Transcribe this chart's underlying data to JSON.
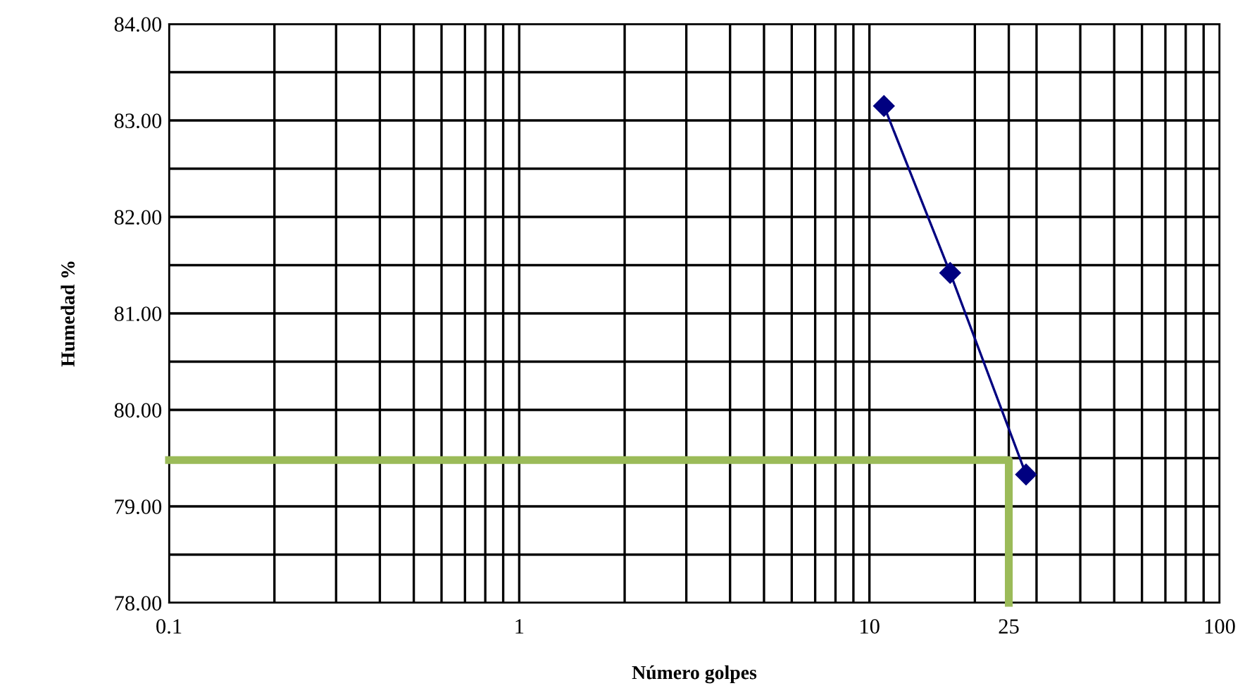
{
  "chart_data": {
    "type": "line",
    "xlabel": "Número golpes",
    "ylabel": "Humedad %",
    "log": "x",
    "grid": true,
    "marker": "diamond",
    "xlim": [
      0.1,
      100
    ],
    "ylim": [
      78,
      84
    ],
    "xticks": [
      0.1,
      {
        "value": 0.2,
        "label": null
      },
      {
        "value": 0.3,
        "label": null
      },
      {
        "value": 0.4,
        "label": null
      },
      {
        "value": 0.5,
        "label": null
      },
      {
        "value": 0.6,
        "label": null
      },
      {
        "value": 0.7,
        "label": null
      },
      {
        "value": 0.8,
        "label": null
      },
      {
        "value": 0.9,
        "label": null
      },
      1,
      {
        "value": 2,
        "label": null
      },
      {
        "value": 3,
        "label": null
      },
      {
        "value": 4,
        "label": null
      },
      {
        "value": 5,
        "label": null
      },
      {
        "value": 6,
        "label": null
      },
      {
        "value": 7,
        "label": null
      },
      {
        "value": 8,
        "label": null
      },
      {
        "value": 9,
        "label": null
      },
      10,
      {
        "value": 20,
        "label": null
      },
      {
        "value": 25,
        "label": "25"
      },
      {
        "value": 30,
        "label": null
      },
      {
        "value": 40,
        "label": null
      },
      {
        "value": 50,
        "label": null
      },
      {
        "value": 60,
        "label": null
      },
      {
        "value": 70,
        "label": null
      },
      {
        "value": 80,
        "label": null
      },
      {
        "value": 90,
        "label": null
      },
      100
    ],
    "yticks": [
      {
        "value": 78,
        "label": "78.00"
      },
      {
        "value": 78.5,
        "label": null
      },
      {
        "value": 79,
        "label": "79.00"
      },
      {
        "value": 79.5,
        "label": null
      },
      {
        "value": 80,
        "label": "80.00"
      },
      {
        "value": 80.5,
        "label": null
      },
      {
        "value": 81,
        "label": "81.00"
      },
      {
        "value": 81.5,
        "label": null
      },
      {
        "value": 82,
        "label": "82.00"
      },
      {
        "value": 82.5,
        "label": null
      },
      {
        "value": 83,
        "label": "83.00"
      },
      {
        "value": 83.5,
        "label": null
      },
      {
        "value": 84,
        "label": "84.00"
      }
    ],
    "series": [
      {
        "color": "#000080",
        "x": [
          11,
          17,
          28
        ],
        "values": [
          83.15,
          81.42,
          79.33
        ]
      },
      {
        "color": "#9bbb59",
        "marker": "none",
        "x": [
          0.1,
          25,
          25
        ],
        "values": [
          79.48,
          79.48,
          78
        ]
      }
    ]
  }
}
